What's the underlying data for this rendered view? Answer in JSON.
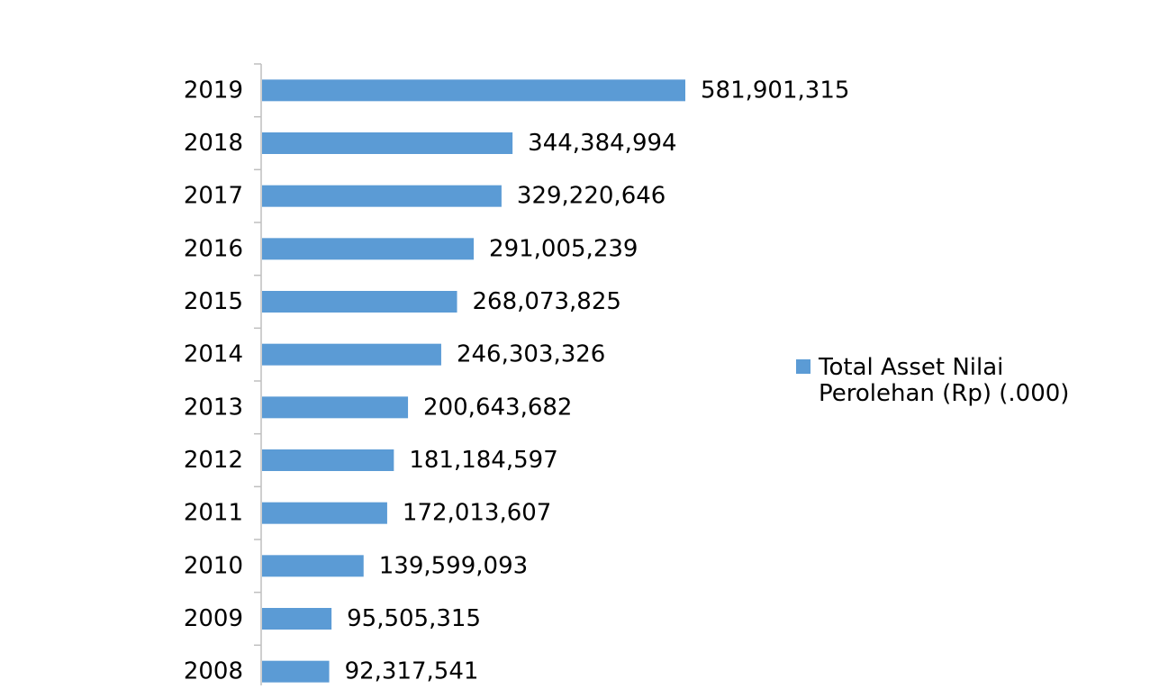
{
  "chart_data": {
    "type": "bar",
    "orientation": "horizontal",
    "categories": [
      "2019",
      "2018",
      "2017",
      "2016",
      "2015",
      "2014",
      "2013",
      "2012",
      "2011",
      "2010",
      "2009",
      "2008"
    ],
    "series": [
      {
        "name": "Total Asset Nilai Perolehan (Rp) (.000)",
        "color": "#5b9bd5",
        "values": [
          581901315,
          344384994,
          329220646,
          291005239,
          268073825,
          246303326,
          200643682,
          181184597,
          172013607,
          139599093,
          95505315,
          92317541
        ],
        "labels": [
          "581,901,315",
          "344,384,994",
          "329,220,646",
          "291,005,239",
          "268,073,825",
          "246,303,326",
          "200,643,682",
          "181,184,597",
          "172,013,607",
          "139,599,093",
          "95,505,315",
          "92,317,541"
        ]
      }
    ],
    "legend": {
      "position": "right",
      "text": "Total Asset Nilai Perolehan (Rp) (.000)"
    },
    "axis_color": "#bfbfbf",
    "xlim": [
      0,
      800000000
    ],
    "grid": false
  }
}
